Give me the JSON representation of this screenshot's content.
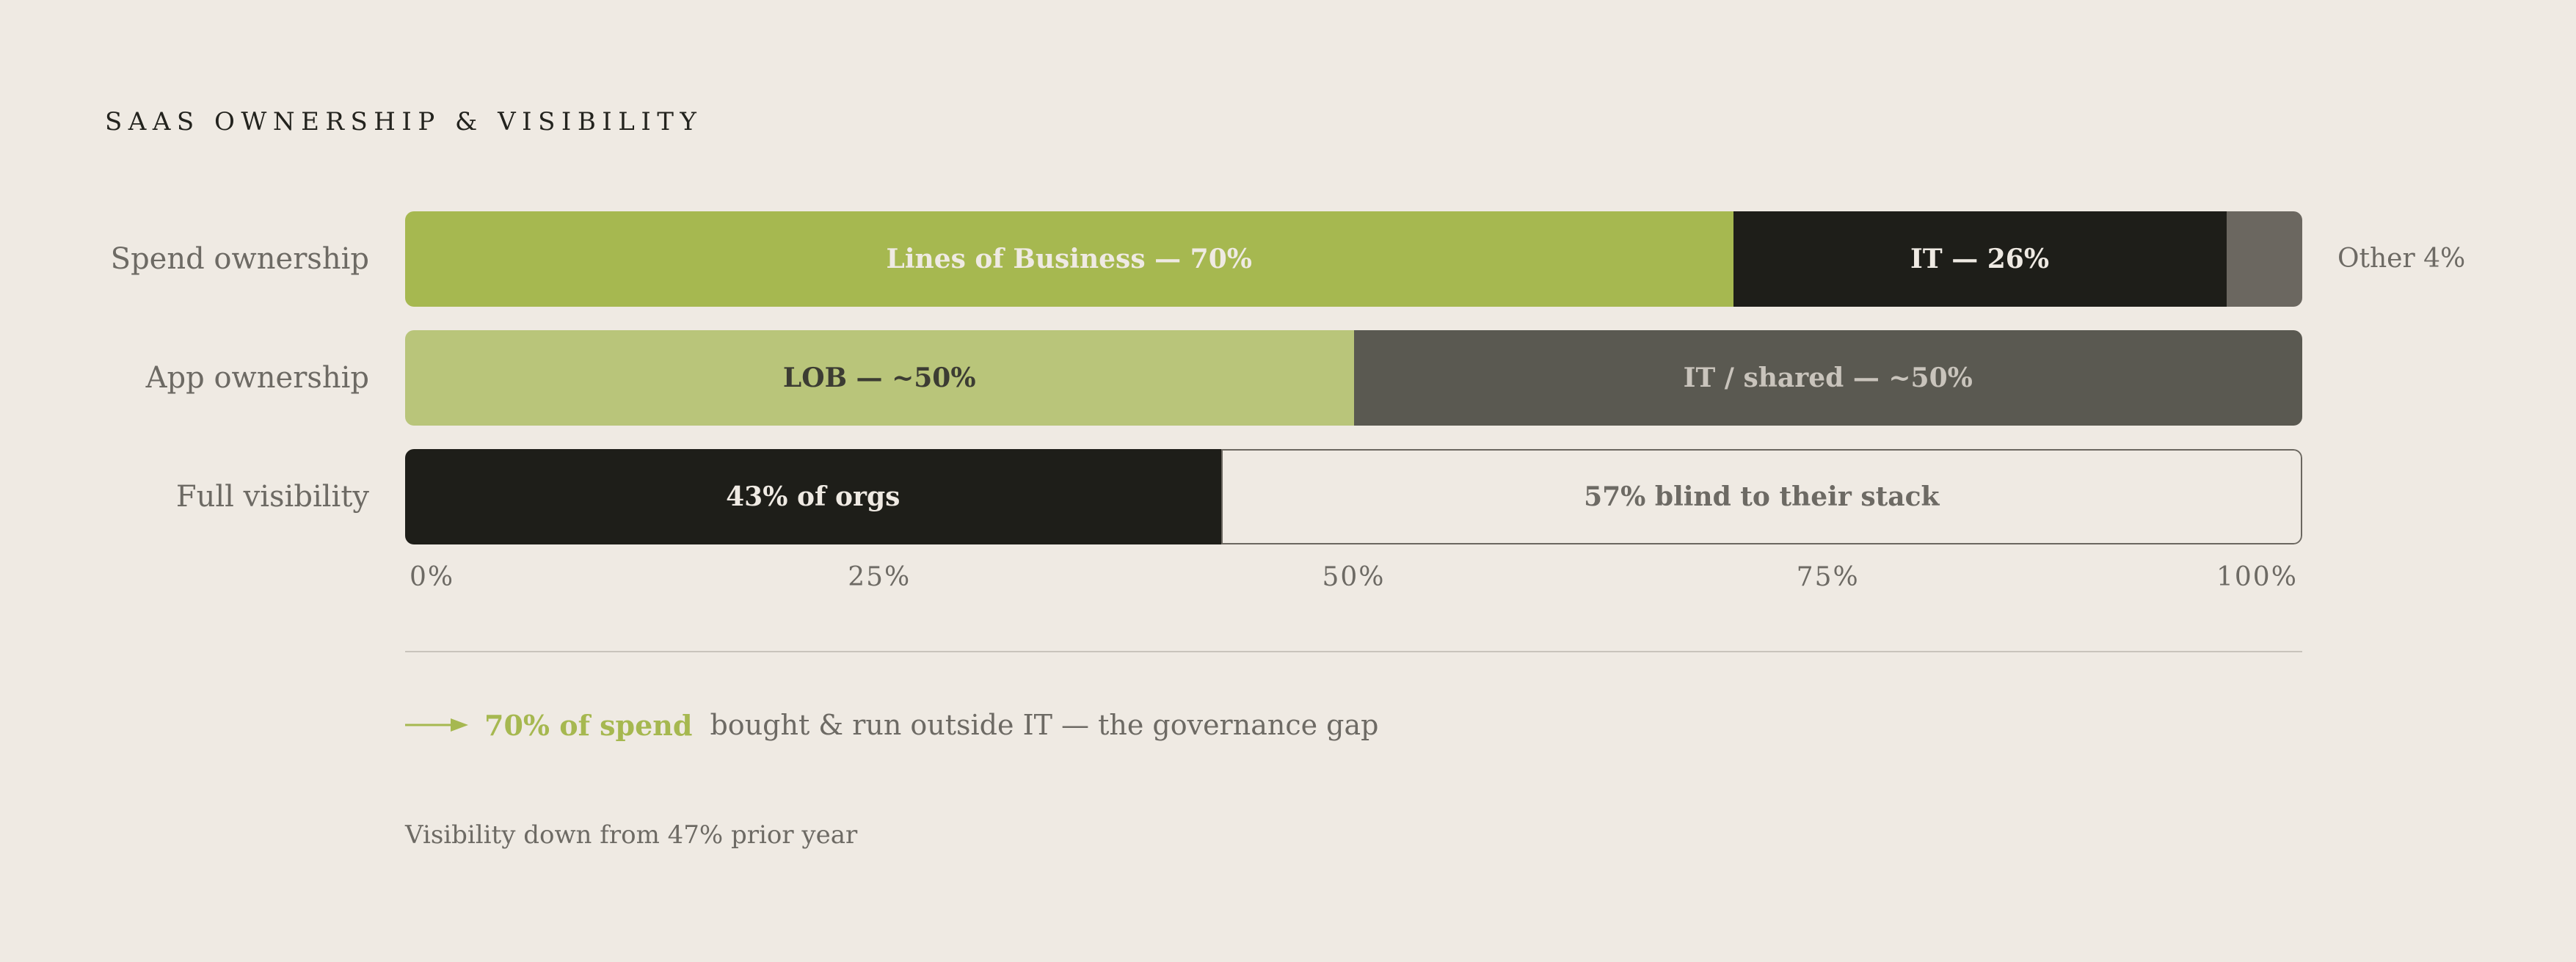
{
  "title": "SAAS OWNERSHIP & VISIBILITY",
  "chart_data": {
    "type": "bar",
    "orientation": "horizontal",
    "stacked": true,
    "xlim": [
      0,
      100
    ],
    "ticks": [
      "0%",
      "25%",
      "50%",
      "75%",
      "100%"
    ],
    "rows": [
      {
        "label": "Spend ownership",
        "outside_label": "Other 4%",
        "segments": [
          {
            "label": "Lines of Business — 70%",
            "value": 70,
            "color": "#a6b850",
            "text_color": "#efeae3",
            "outline": false
          },
          {
            "label": "IT — 26%",
            "value": 26,
            "color": "#1e1e19",
            "text_color": "#efeae3",
            "outline": false
          },
          {
            "label": "",
            "value": 4,
            "color": "#6b6760",
            "text_color": "#efeae3",
            "outline": false
          }
        ]
      },
      {
        "label": "App ownership",
        "outside_label": "",
        "segments": [
          {
            "label": "LOB — ~50%",
            "value": 50,
            "color": "#b9c57a",
            "text_color": "#3c3c33",
            "outline": false
          },
          {
            "label": "IT / shared — ~50%",
            "value": 50,
            "color": "#5a5951",
            "text_color": "#c9c4bc",
            "outline": false
          }
        ]
      },
      {
        "label": "Full visibility",
        "outside_label": "",
        "segments": [
          {
            "label": "43% of orgs",
            "value": 43,
            "color": "#1e1e19",
            "text_color": "#efeae3",
            "outline": false
          },
          {
            "label": "57% blind to their stack",
            "value": 57,
            "color": "#efeae3",
            "text_color": "#6d6a64",
            "outline": true
          }
        ]
      }
    ]
  },
  "callout": {
    "highlight": "70% of spend",
    "text": "bought & run outside IT — the governance gap",
    "accent_color": "#a6b850"
  },
  "footnote": "Visibility down from 47% prior year"
}
